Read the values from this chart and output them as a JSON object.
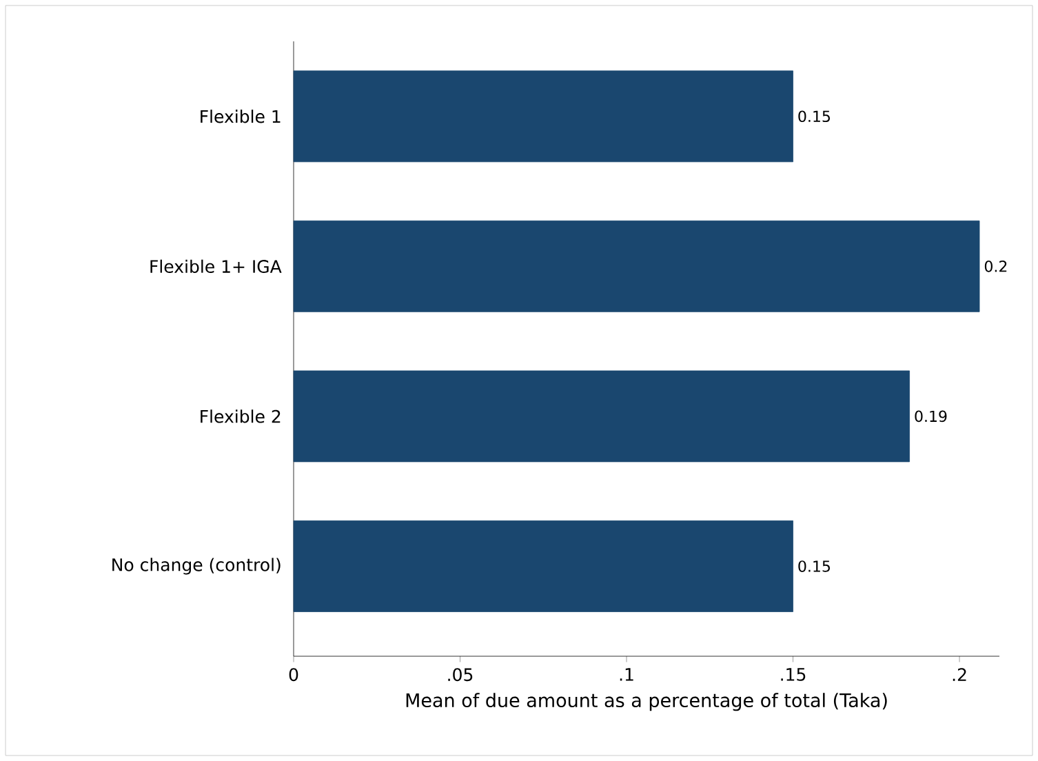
{
  "chart_data": {
    "type": "bar",
    "orientation": "horizontal",
    "xlabel": "Mean of due amount as a percentage of total (Taka)",
    "categories": [
      "Flexible 1",
      "Flexible 1+ IGA",
      "Flexible 2",
      "No change (control)"
    ],
    "values": [
      0.15,
      0.206,
      0.185,
      0.15
    ],
    "value_labels": [
      "0.15",
      "0.2",
      "0.19",
      "0.15"
    ],
    "color": "#1a476f",
    "xlim": [
      0,
      0.212
    ],
    "xticks": [
      0,
      {
        "value": 0.05,
        "label": ".05"
      },
      {
        "value": 0.1,
        "label": ".1"
      },
      {
        "value": 0.15,
        "label": ".15"
      },
      {
        "value": 0.2,
        "label": ".2"
      }
    ],
    "grid": false
  }
}
